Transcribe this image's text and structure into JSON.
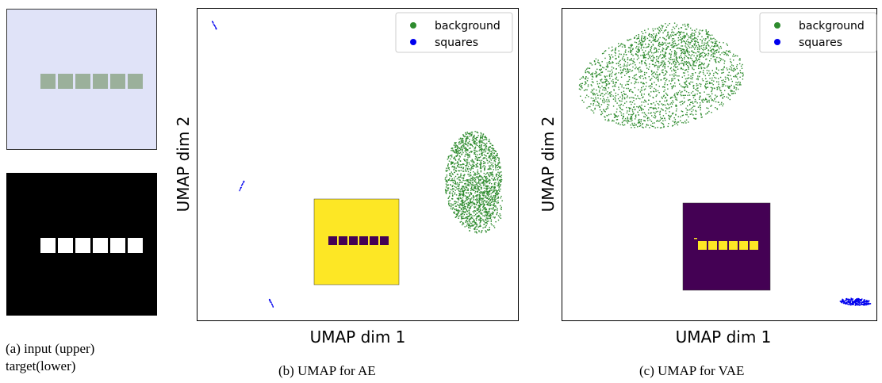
{
  "panel_a": {
    "caption_line1": "(a) input (upper)",
    "caption_line2": "target(lower)",
    "input_background": "#e0e3f8",
    "input_square_color": "#9bb09b",
    "target_background": "#000000",
    "target_square_color": "#ffffff",
    "square_count": 6
  },
  "colors": {
    "background": "#2e8b2e",
    "squares": "#0000ee",
    "viridis_yellow": "#fde725",
    "viridis_purple": "#440154"
  },
  "chart_data": [
    {
      "type": "scatter",
      "caption": "(b) UMAP for AE",
      "xlabel": "UMAP dim 1",
      "ylabel": "UMAP dim 2",
      "legend": {
        "placement": "top-right",
        "entries": [
          "background",
          "squares"
        ]
      },
      "grid": false,
      "inset": {
        "background": "yellow",
        "squares": "purple",
        "square_count": 6
      },
      "series": [
        {
          "name": "background",
          "values": "dense cluster at right-center"
        },
        {
          "name": "squares",
          "values": "three thin streaks at left"
        }
      ]
    },
    {
      "type": "scatter",
      "caption": "(c) UMAP for VAE",
      "xlabel": "UMAP dim 1",
      "ylabel": "UMAP dim 2",
      "legend": {
        "placement": "top-right",
        "entries": [
          "background",
          "squares"
        ]
      },
      "grid": false,
      "inset": {
        "background": "purple",
        "squares": "yellow",
        "square_count": 6
      },
      "series": [
        {
          "name": "background",
          "values": "large cluster at top-left"
        },
        {
          "name": "squares",
          "values": "small cluster at bottom-right"
        }
      ]
    }
  ]
}
